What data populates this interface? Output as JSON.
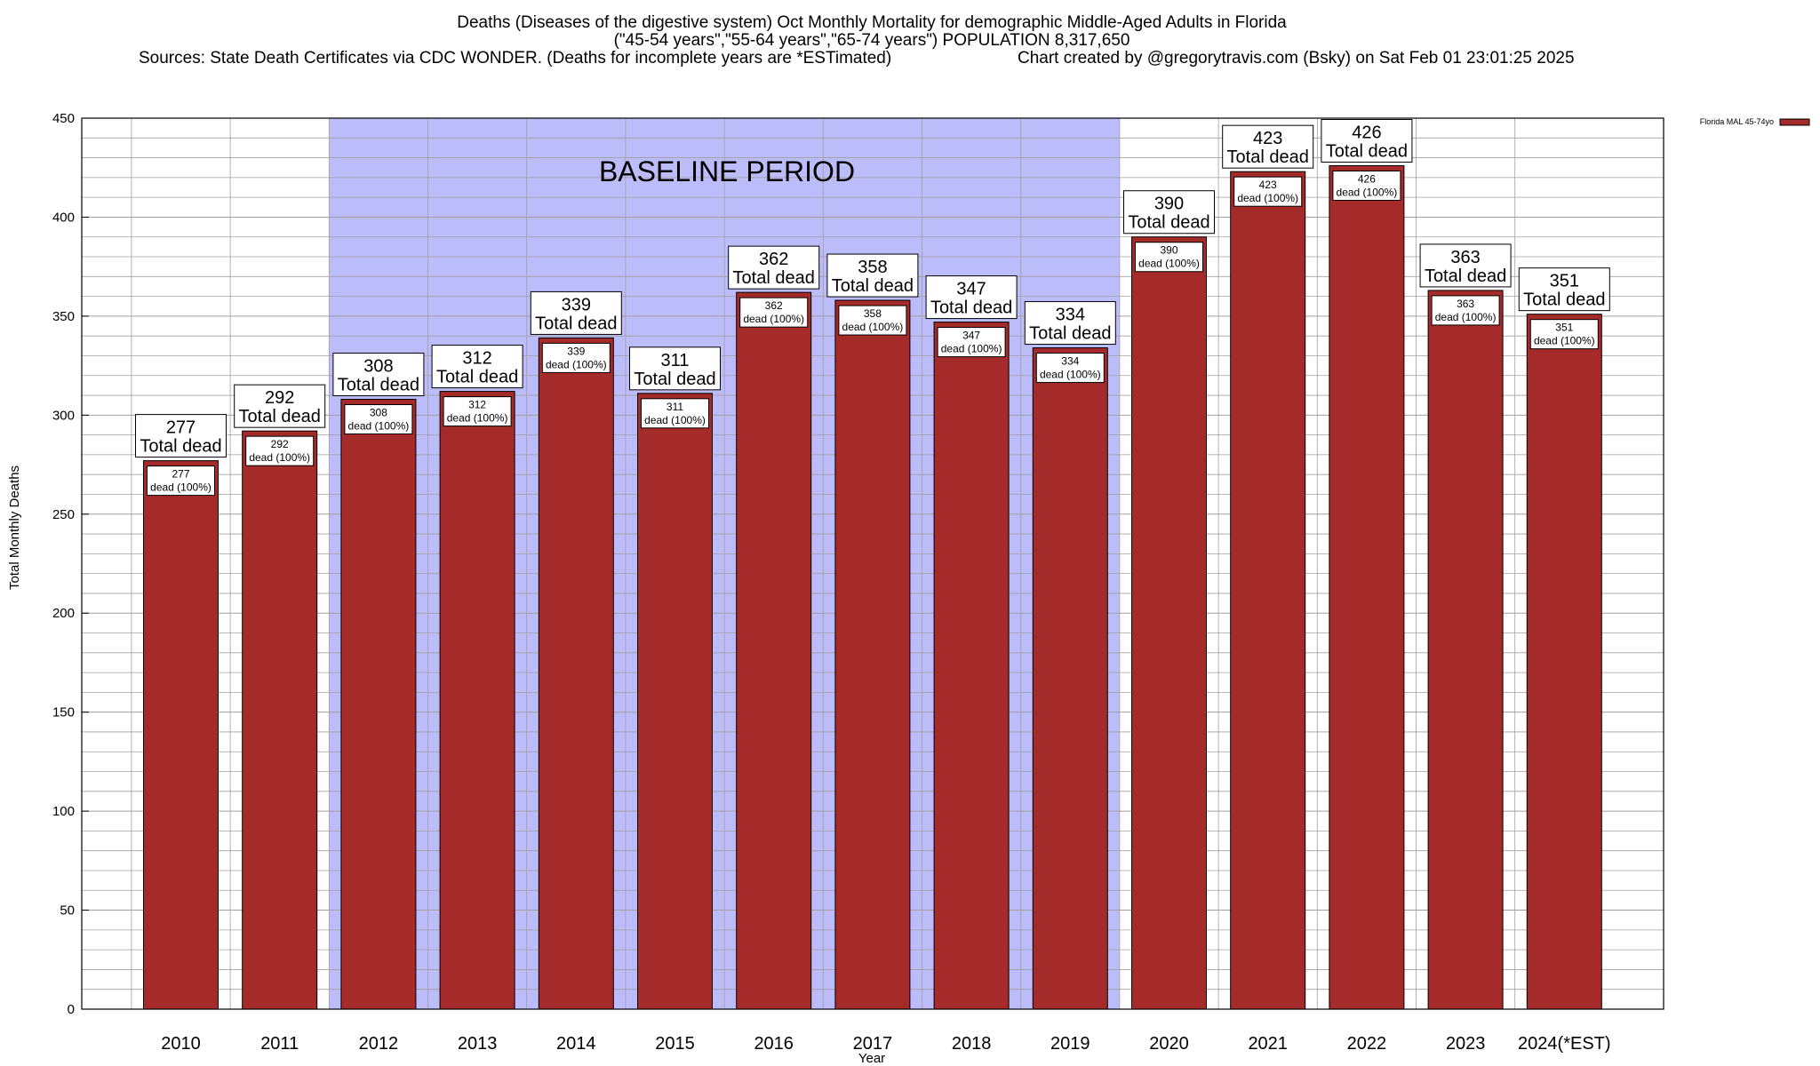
{
  "header": {
    "title_line1": "Deaths (Diseases of the digestive system) Oct Monthly Mortality for demographic Middle-Aged Adults in Florida",
    "title_line2": "(\"45-54 years\",\"55-64 years\",\"65-74 years\") POPULATION 8,317,650",
    "title_line3_left": "Sources: State Death Certificates via CDC WONDER. (Deaths for incomplete years are *ESTimated)",
    "title_line3_right": "Chart created by @gregorytravis.com (Bsky) on Sat Feb 01 23:01:25 2025"
  },
  "baseline_label": "BASELINE PERIOD",
  "label_texts": {
    "total_dead": "Total dead",
    "dead_pct": "dead (100%)"
  },
  "colors": {
    "bar": "#a52a2a",
    "baseline_shade": "#bcbcfa",
    "grid": "#a0a0a0"
  },
  "chart_data": {
    "type": "bar",
    "xlabel": "Year",
    "ylabel": "Total Monthly Deaths",
    "ylim": [
      0,
      450
    ],
    "ytick_step": 50,
    "minor_grid_step": 10,
    "grid": true,
    "legend_position": "top-right",
    "categories": [
      "2010",
      "2011",
      "2012",
      "2013",
      "2014",
      "2015",
      "2016",
      "2017",
      "2018",
      "2019",
      "2020",
      "2021",
      "2022",
      "2023",
      "2024(*EST)"
    ],
    "series": [
      {
        "name": "Florida MAL 45-74yo",
        "color": "#a52a2a",
        "values": [
          277,
          292,
          308,
          312,
          339,
          311,
          362,
          358,
          347,
          334,
          390,
          423,
          426,
          363,
          351
        ]
      }
    ],
    "baseline_period": [
      "2012",
      "2019"
    ]
  }
}
